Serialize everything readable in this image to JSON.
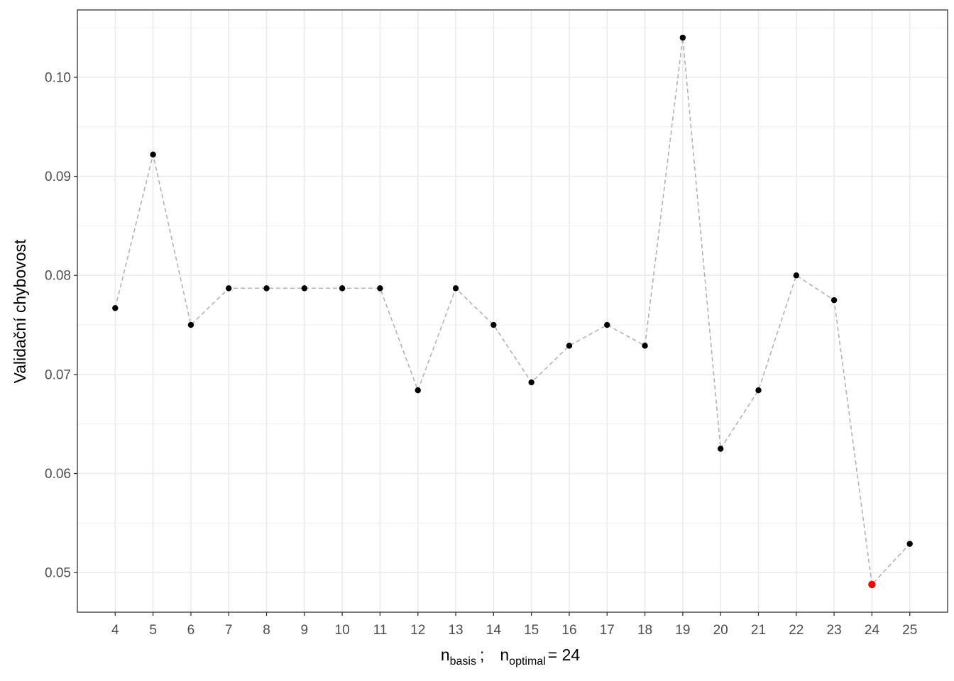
{
  "chart_data": {
    "type": "line",
    "title": "",
    "ylabel": "Validační chybovost",
    "xlabel": {
      "n1": "n",
      "sub1": "basis",
      "sep": ";",
      "n2": "n",
      "sub2": "optimal",
      "eq": "= 24"
    },
    "x": [
      4,
      5,
      6,
      7,
      8,
      9,
      10,
      11,
      12,
      13,
      14,
      15,
      16,
      17,
      18,
      19,
      20,
      21,
      22,
      23,
      24,
      25
    ],
    "series": [
      {
        "values": [
          0.0767,
          0.0922,
          0.075,
          0.0787,
          0.0787,
          0.0787,
          0.0787,
          0.0787,
          0.0684,
          0.0787,
          0.075,
          0.0692,
          0.0729,
          0.075,
          0.0729,
          0.104,
          0.0625,
          0.0684,
          0.08,
          0.0775,
          0.0488,
          0.0529
        ],
        "line_style": "dashed",
        "line_color": "#b3b3b3",
        "point_color": "#000000"
      }
    ],
    "highlight": {
      "x": 24,
      "color": "#ff0000"
    },
    "yticks": [
      0.05,
      0.06,
      0.07,
      0.08,
      0.09,
      0.1
    ],
    "ytick_labels": [
      "0.05",
      "0.06",
      "0.07",
      "0.08",
      "0.09",
      "0.10"
    ],
    "xlim": [
      3,
      26
    ],
    "ylim": [
      0.046,
      0.1068
    ],
    "grid": true,
    "colors": {
      "grid": "#ebebeb",
      "panel_border": "#333333"
    }
  }
}
